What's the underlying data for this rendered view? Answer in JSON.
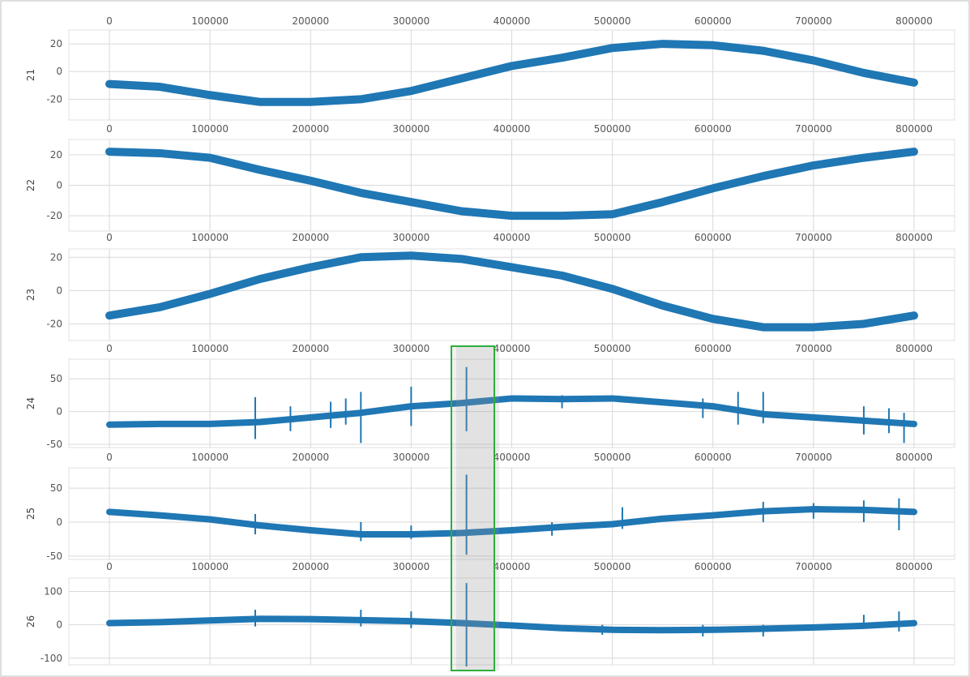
{
  "chart_data": [
    {
      "type": "line",
      "ylabel": "21",
      "xlim": [
        0,
        800000
      ],
      "ylim": [
        -35,
        30
      ],
      "xticks": [
        "0",
        "100000",
        "200000",
        "300000",
        "400000",
        "500000",
        "600000",
        "700000",
        "800000"
      ],
      "yticks": [
        {
          "v": 20,
          "label": "20"
        },
        {
          "v": 0,
          "label": "0"
        },
        {
          "v": -20,
          "label": "-20"
        }
      ],
      "grid": true,
      "band": 4,
      "x": [
        0,
        50000,
        100000,
        150000,
        200000,
        250000,
        300000,
        350000,
        400000,
        450000,
        500000,
        550000,
        600000,
        650000,
        700000,
        750000,
        800000
      ],
      "y": [
        -9,
        -11,
        -17,
        -22,
        -22,
        -20,
        -14,
        -5,
        4,
        10,
        17,
        20,
        19,
        15,
        8,
        -1,
        -8
      ],
      "spikes": []
    },
    {
      "type": "line",
      "ylabel": "22",
      "xlim": [
        0,
        800000
      ],
      "ylim": [
        -30,
        30
      ],
      "xticks": [
        "0",
        "100000",
        "200000",
        "300000",
        "400000",
        "500000",
        "600000",
        "700000",
        "800000"
      ],
      "yticks": [
        {
          "v": 20,
          "label": "20"
        },
        {
          "v": 0,
          "label": "0"
        },
        {
          "v": -20,
          "label": "-20"
        }
      ],
      "grid": true,
      "band": 4,
      "x": [
        0,
        50000,
        100000,
        150000,
        200000,
        250000,
        300000,
        350000,
        400000,
        450000,
        500000,
        550000,
        600000,
        650000,
        700000,
        750000,
        800000
      ],
      "y": [
        22,
        21,
        18,
        10,
        3,
        -5,
        -11,
        -17,
        -20,
        -20,
        -19,
        -11,
        -2,
        6,
        13,
        18,
        22
      ],
      "spikes": []
    },
    {
      "type": "line",
      "ylabel": "23",
      "xlim": [
        0,
        800000
      ],
      "ylim": [
        -30,
        25
      ],
      "xticks": [
        "0",
        "100000",
        "200000",
        "300000",
        "400000",
        "500000",
        "600000",
        "700000",
        "800000"
      ],
      "yticks": [
        {
          "v": 20,
          "label": "20"
        },
        {
          "v": 0,
          "label": "0"
        },
        {
          "v": -20,
          "label": "-20"
        }
      ],
      "grid": true,
      "band": 4,
      "x": [
        0,
        50000,
        100000,
        150000,
        200000,
        250000,
        300000,
        350000,
        400000,
        450000,
        500000,
        550000,
        600000,
        650000,
        700000,
        750000,
        800000
      ],
      "y": [
        -15,
        -10,
        -2,
        7,
        14,
        20,
        21,
        19,
        14,
        9,
        1,
        -9,
        -17,
        -22,
        -22,
        -20,
        -15
      ],
      "spikes": []
    },
    {
      "type": "line",
      "ylabel": "24",
      "xlim": [
        0,
        800000
      ],
      "ylim": [
        -55,
        80
      ],
      "xticks": [
        "0",
        "100000",
        "200000",
        "300000",
        "400000",
        "500000",
        "600000",
        "700000",
        "800000"
      ],
      "yticks": [
        {
          "v": 50,
          "label": "50"
        },
        {
          "v": 0,
          "label": "0"
        },
        {
          "v": -50,
          "label": "-50"
        }
      ],
      "grid": true,
      "band": 3,
      "x": [
        0,
        50000,
        100000,
        150000,
        200000,
        250000,
        300000,
        350000,
        400000,
        450000,
        500000,
        550000,
        600000,
        650000,
        700000,
        750000,
        800000
      ],
      "y": [
        -20,
        -19,
        -19,
        -16,
        -9,
        -2,
        8,
        13,
        20,
        19,
        20,
        14,
        8,
        -4,
        -9,
        -14,
        -19
      ],
      "spikes": [
        {
          "x": 145000,
          "lo": -42,
          "hi": 22
        },
        {
          "x": 180000,
          "lo": -30,
          "hi": 8
        },
        {
          "x": 220000,
          "lo": -25,
          "hi": 15
        },
        {
          "x": 235000,
          "lo": -20,
          "hi": 20
        },
        {
          "x": 250000,
          "lo": -48,
          "hi": 30
        },
        {
          "x": 300000,
          "lo": -22,
          "hi": 38
        },
        {
          "x": 355000,
          "lo": -30,
          "hi": 68
        },
        {
          "x": 450000,
          "lo": 5,
          "hi": 25
        },
        {
          "x": 590000,
          "lo": -10,
          "hi": 20
        },
        {
          "x": 625000,
          "lo": -20,
          "hi": 30
        },
        {
          "x": 650000,
          "lo": -18,
          "hi": 30
        },
        {
          "x": 750000,
          "lo": -35,
          "hi": 8
        },
        {
          "x": 775000,
          "lo": -33,
          "hi": 5
        },
        {
          "x": 790000,
          "lo": -48,
          "hi": -2
        }
      ]
    },
    {
      "type": "line",
      "ylabel": "25",
      "xlim": [
        0,
        800000
      ],
      "ylim": [
        -55,
        80
      ],
      "xticks": [
        "0",
        "100000",
        "200000",
        "300000",
        "400000",
        "500000",
        "600000",
        "700000",
        "800000"
      ],
      "yticks": [
        {
          "v": 50,
          "label": "50"
        },
        {
          "v": 0,
          "label": "0"
        },
        {
          "v": -50,
          "label": "-50"
        }
      ],
      "grid": true,
      "band": 3,
      "x": [
        0,
        50000,
        100000,
        150000,
        200000,
        250000,
        300000,
        350000,
        400000,
        450000,
        500000,
        550000,
        600000,
        650000,
        700000,
        750000,
        800000
      ],
      "y": [
        15,
        10,
        4,
        -5,
        -12,
        -18,
        -18,
        -16,
        -12,
        -7,
        -3,
        5,
        10,
        16,
        19,
        18,
        15
      ],
      "spikes": [
        {
          "x": 145000,
          "lo": -18,
          "hi": 12
        },
        {
          "x": 250000,
          "lo": -28,
          "hi": 0
        },
        {
          "x": 300000,
          "lo": -25,
          "hi": -5
        },
        {
          "x": 355000,
          "lo": -48,
          "hi": 70
        },
        {
          "x": 440000,
          "lo": -20,
          "hi": 0
        },
        {
          "x": 510000,
          "lo": -10,
          "hi": 22
        },
        {
          "x": 650000,
          "lo": 0,
          "hi": 30
        },
        {
          "x": 700000,
          "lo": 5,
          "hi": 28
        },
        {
          "x": 750000,
          "lo": 0,
          "hi": 32
        },
        {
          "x": 785000,
          "lo": -12,
          "hi": 35
        }
      ]
    },
    {
      "type": "line",
      "ylabel": "26",
      "xlim": [
        0,
        800000
      ],
      "ylim": [
        -120,
        140
      ],
      "xticks": [],
      "yticks": [
        {
          "v": 100,
          "label": "100"
        },
        {
          "v": 0,
          "label": "0"
        },
        {
          "v": -100,
          "label": "-100"
        }
      ],
      "grid": true,
      "band": 3,
      "x": [
        0,
        50000,
        100000,
        150000,
        200000,
        250000,
        300000,
        350000,
        400000,
        450000,
        500000,
        550000,
        600000,
        650000,
        700000,
        750000,
        800000
      ],
      "y": [
        5,
        8,
        13,
        18,
        17,
        14,
        11,
        5,
        -2,
        -10,
        -15,
        -16,
        -15,
        -12,
        -8,
        -3,
        5
      ],
      "spikes": [
        {
          "x": 145000,
          "lo": -5,
          "hi": 45
        },
        {
          "x": 250000,
          "lo": -5,
          "hi": 45
        },
        {
          "x": 300000,
          "lo": -10,
          "hi": 40
        },
        {
          "x": 355000,
          "lo": -125,
          "hi": 125
        },
        {
          "x": 490000,
          "lo": -30,
          "hi": 0
        },
        {
          "x": 590000,
          "lo": -35,
          "hi": 0
        },
        {
          "x": 650000,
          "lo": -35,
          "hi": 0
        },
        {
          "x": 750000,
          "lo": -5,
          "hi": 30
        },
        {
          "x": 785000,
          "lo": -20,
          "hi": 40
        }
      ]
    }
  ]
}
